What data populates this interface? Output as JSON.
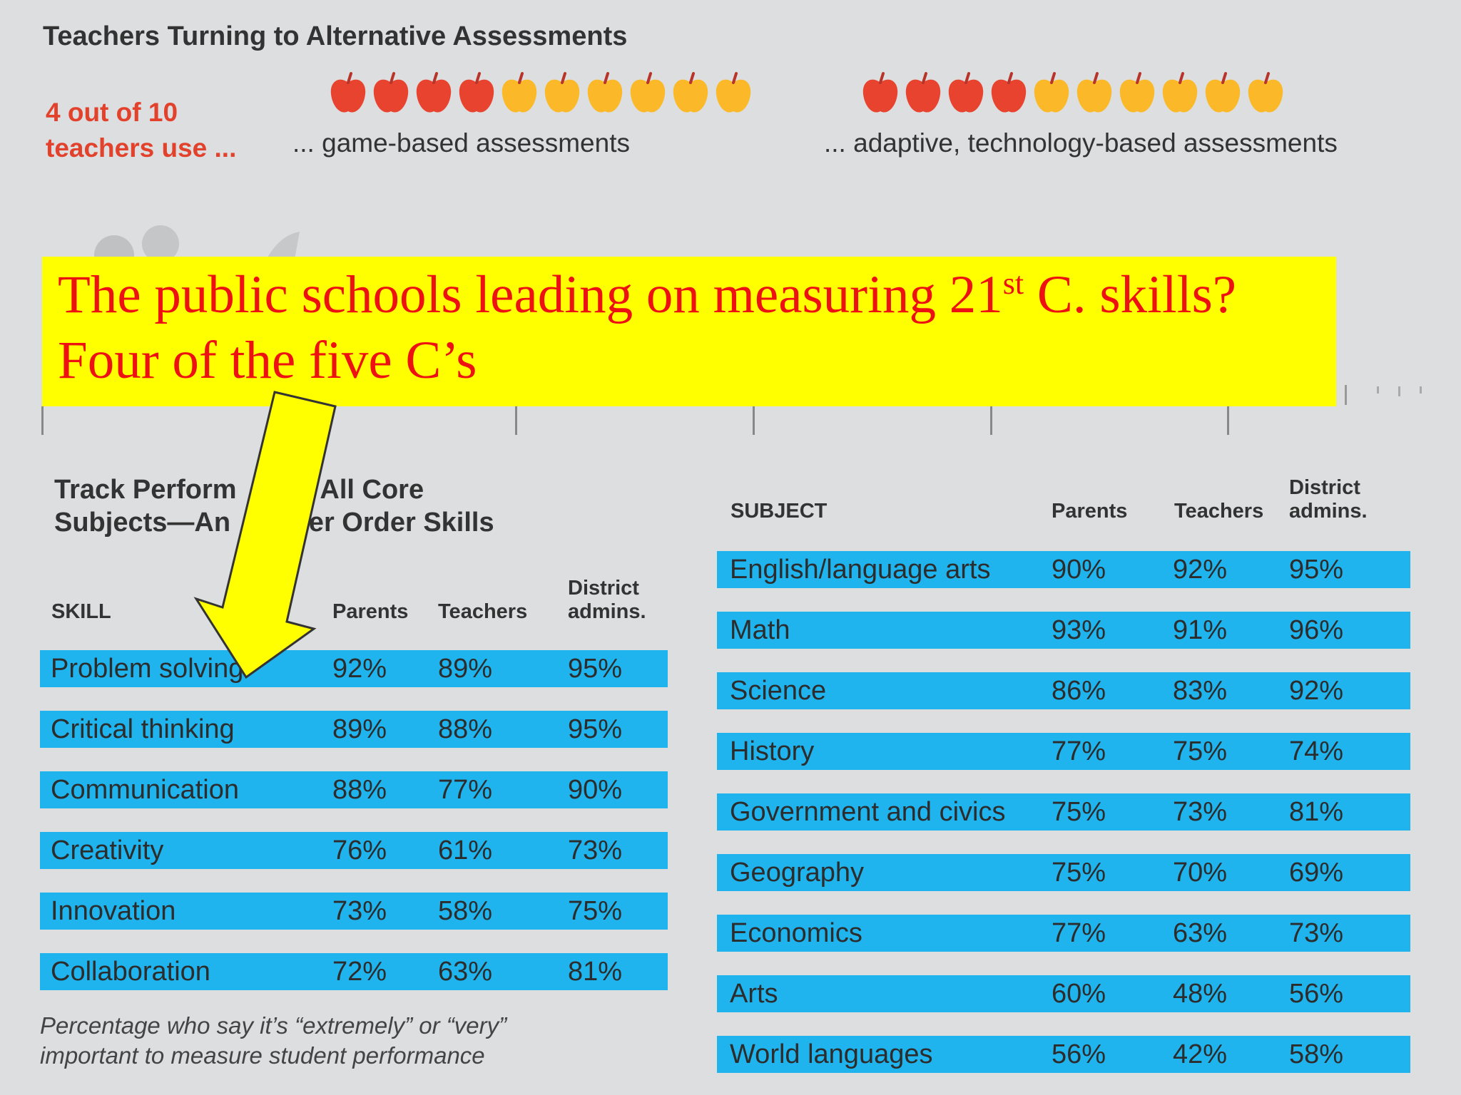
{
  "title": "Teachers Turning to Alternative Assessments",
  "intro_line1": "4 out of 10",
  "intro_line2": "teachers use ...",
  "assessments": [
    {
      "caption": "... game-based assessments",
      "value": 4,
      "total": 10
    },
    {
      "caption": "... adaptive, technology-based assessments",
      "value": 4,
      "total": 10
    }
  ],
  "callout": {
    "line1_before": "The public schools leading on measuring 21",
    "line1_sup": "st",
    "line1_after": " C. skills?",
    "line2": "Four of the five C’s"
  },
  "colors": {
    "apple_red": "#e8432e",
    "apple_yellow": "#fbb929",
    "row_blue": "#1fb4ee",
    "callout_bg": "#ffff00",
    "callout_text": "#ee1111",
    "arrow_fill": "#ffff00"
  },
  "chart_data": [
    {
      "type": "table",
      "title_line1": "Track Perform    e in All Core",
      "title_line2": "Subjects—An      gher Order Skills",
      "columns": [
        "SKILL",
        "Parents",
        "Teachers",
        "District admins."
      ],
      "col_district_1": "District",
      "col_district_2": "admins.",
      "rows": [
        {
          "label": "Problem solving",
          "parents": "92%",
          "teachers": "89%",
          "district": "95%"
        },
        {
          "label": "Critical thinking",
          "parents": "89%",
          "teachers": "88%",
          "district": "95%"
        },
        {
          "label": "Communication",
          "parents": "88%",
          "teachers": "77%",
          "district": "90%"
        },
        {
          "label": "Creativity",
          "parents": "76%",
          "teachers": "61%",
          "district": "73%"
        },
        {
          "label": "Innovation",
          "parents": "73%",
          "teachers": "58%",
          "district": "75%"
        },
        {
          "label": "Collaboration",
          "parents": "72%",
          "teachers": "63%",
          "district": "81%"
        }
      ],
      "footnote_line1": "Percentage who say it’s “extremely” or “very”",
      "footnote_line2": "important to measure student performance"
    },
    {
      "type": "table",
      "columns": [
        "SUBJECT",
        "Parents",
        "Teachers",
        "District admins."
      ],
      "col_district_1": "District",
      "col_district_2": "admins.",
      "rows": [
        {
          "label": "English/language arts",
          "parents": "90%",
          "teachers": "92%",
          "district": "95%"
        },
        {
          "label": "Math",
          "parents": "93%",
          "teachers": "91%",
          "district": "96%"
        },
        {
          "label": "Science",
          "parents": "86%",
          "teachers": "83%",
          "district": "92%"
        },
        {
          "label": "History",
          "parents": "77%",
          "teachers": "75%",
          "district": "74%"
        },
        {
          "label": "Government and civics",
          "parents": "75%",
          "teachers": "73%",
          "district": "81%"
        },
        {
          "label": "Geography",
          "parents": "75%",
          "teachers": "70%",
          "district": "69%"
        },
        {
          "label": "Economics",
          "parents": "77%",
          "teachers": "63%",
          "district": "73%"
        },
        {
          "label": "Arts",
          "parents": "60%",
          "teachers": "48%",
          "district": "56%"
        },
        {
          "label": "World languages",
          "parents": "56%",
          "teachers": "42%",
          "district": "58%"
        }
      ]
    }
  ]
}
